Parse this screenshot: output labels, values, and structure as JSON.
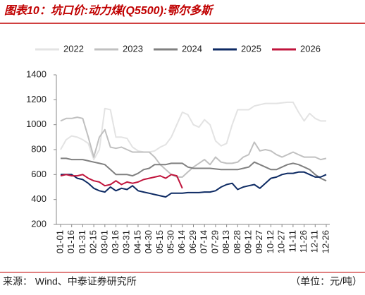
{
  "chart_data": {
    "type": "line",
    "title": "图表10：坑口价:动力煤(Q5500):鄂尔多斯",
    "source": "来源：  Wind、中泰证券研究所",
    "unit": "（单位：元/吨）",
    "categories": [
      "01-01",
      null,
      "01-16",
      null,
      "01-31",
      null,
      "02-15",
      null,
      "03-01",
      null,
      "03-16",
      null,
      "03-31",
      null,
      "04-15",
      null,
      "04-30",
      null,
      "05-15",
      null,
      "05-30",
      null,
      "06-14",
      null,
      "06-29",
      null,
      "07-14",
      null,
      "07-29",
      null,
      "08-13",
      null,
      "08-28",
      null,
      "09-12",
      null,
      "09-27",
      null,
      "10-12",
      null,
      "10-27",
      null,
      "11-11",
      null,
      "11-26",
      null,
      "12-11",
      null,
      "12-26"
    ],
    "series": [
      {
        "name": "2022",
        "color": "#e3e3e3",
        "values": [
          800,
          880,
          910,
          900,
          880,
          850,
          720,
          800,
          1130,
          1120,
          900,
          900,
          890,
          820,
          790,
          780,
          780,
          790,
          820,
          840,
          900,
          1000,
          1100,
          1080,
          1000,
          980,
          1040,
          1000,
          870,
          830,
          850,
          1000,
          1120,
          1120,
          1120,
          1150,
          1160,
          1170,
          1170,
          1170,
          1175,
          1180,
          1180,
          1100,
          1030,
          1090,
          1050,
          1030,
          1030
        ]
      },
      {
        "name": "2023",
        "color": "#c0c0c0",
        "values": [
          1030,
          1050,
          1050,
          1060,
          1050,
          900,
          740,
          900,
          960,
          820,
          810,
          820,
          800,
          780,
          780,
          780,
          780,
          740,
          680,
          640,
          600,
          580,
          580,
          620,
          660,
          690,
          720,
          680,
          740,
          700,
          690,
          690,
          700,
          740,
          760,
          860,
          790,
          800,
          790,
          760,
          740,
          760,
          780,
          760,
          740,
          740,
          740,
          720,
          730
        ]
      },
      {
        "name": "2024",
        "color": "#808080",
        "values": [
          730,
          730,
          720,
          720,
          720,
          710,
          700,
          690,
          680,
          640,
          600,
          600,
          600,
          590,
          610,
          640,
          650,
          680,
          680,
          680,
          690,
          690,
          690,
          660,
          650,
          650,
          650,
          650,
          645,
          640,
          640,
          640,
          640,
          650,
          660,
          700,
          680,
          660,
          640,
          640,
          660,
          680,
          690,
          680,
          660,
          640,
          600,
          570,
          550
        ]
      },
      {
        "name": "2025",
        "color": "#0d2a63",
        "values": [
          600,
          600,
          600,
          570,
          560,
          530,
          490,
          470,
          460,
          500,
          470,
          490,
          480,
          510,
          470,
          460,
          450,
          440,
          430,
          420,
          450,
          450,
          450,
          455,
          455,
          455,
          460,
          460,
          470,
          500,
          520,
          530,
          480,
          500,
          510,
          520,
          490,
          530,
          570,
          580,
          600,
          610,
          610,
          620,
          620,
          600,
          580,
          580,
          600
        ]
      },
      {
        "name": "2026",
        "color": "#c0143c",
        "values": [
          590,
          600,
          590,
          590,
          600,
          570,
          550,
          540,
          510,
          520,
          550,
          520,
          540,
          530,
          540,
          560,
          570,
          580,
          590,
          570,
          600,
          590,
          490,
          null,
          null,
          null,
          null,
          null,
          null,
          null,
          null,
          null,
          null,
          null,
          null,
          null,
          null,
          null,
          null,
          null,
          null,
          null,
          null,
          null,
          null,
          null,
          null,
          null,
          null
        ]
      }
    ],
    "ylim": [
      200,
      1400
    ],
    "yticks": [
      200,
      400,
      600,
      800,
      1000,
      1200,
      1400
    ]
  }
}
